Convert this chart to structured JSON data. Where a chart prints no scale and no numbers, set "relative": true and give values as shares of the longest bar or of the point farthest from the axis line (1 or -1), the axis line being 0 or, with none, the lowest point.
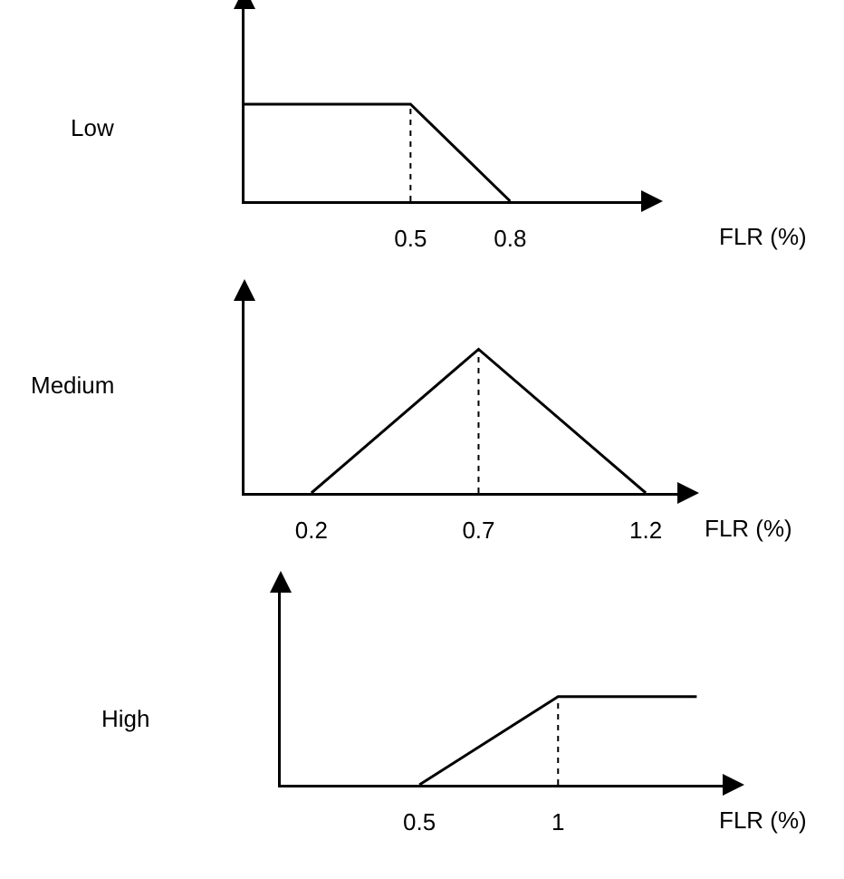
{
  "chart_data": [
    {
      "type": "line",
      "ylabel": "Low",
      "xlabel": "FLR (%)",
      "x": [
        0,
        0.5,
        0.8
      ],
      "series": [
        {
          "color": "#000000",
          "values": [
            1,
            1,
            0
          ]
        }
      ],
      "relative": true,
      "xlim": [
        0,
        1.2
      ],
      "xticks": [
        0.5,
        0.8
      ],
      "tick_labels": "x",
      "grid": false,
      "legend": false,
      "marker": "none",
      "line_style": "solid",
      "ref_lines": [
        {
          "axis": "x",
          "value": 0.5,
          "line_style": "dotted",
          "color": "#000000"
        }
      ]
    },
    {
      "type": "line",
      "ylabel": "Medium",
      "xlabel": "FLR (%)",
      "x": [
        0.2,
        0.7,
        1.2
      ],
      "series": [
        {
          "color": "#000000",
          "values": [
            0,
            1,
            0
          ]
        }
      ],
      "relative": true,
      "xlim": [
        0,
        1.3
      ],
      "xticks": [
        0.2,
        0.7,
        1.2
      ],
      "tick_labels": "x",
      "grid": false,
      "legend": false,
      "marker": "none",
      "line_style": "solid",
      "ref_lines": [
        {
          "axis": "x",
          "value": 0.7,
          "line_style": "dotted",
          "color": "#000000"
        }
      ]
    },
    {
      "type": "line",
      "ylabel": "High",
      "xlabel": "FLR (%)",
      "x": [
        0.5,
        1,
        1.5
      ],
      "series": [
        {
          "color": "#000000",
          "values": [
            0,
            1,
            1
          ]
        }
      ],
      "relative": true,
      "xlim": [
        0,
        1.6
      ],
      "xticks": [
        0.5,
        1
      ],
      "tick_labels": "x",
      "grid": false,
      "legend": false,
      "marker": "none",
      "line_style": "solid",
      "ref_lines": [
        {
          "axis": "x",
          "value": 1,
          "line_style": "dotted",
          "color": "#000000"
        }
      ]
    }
  ]
}
